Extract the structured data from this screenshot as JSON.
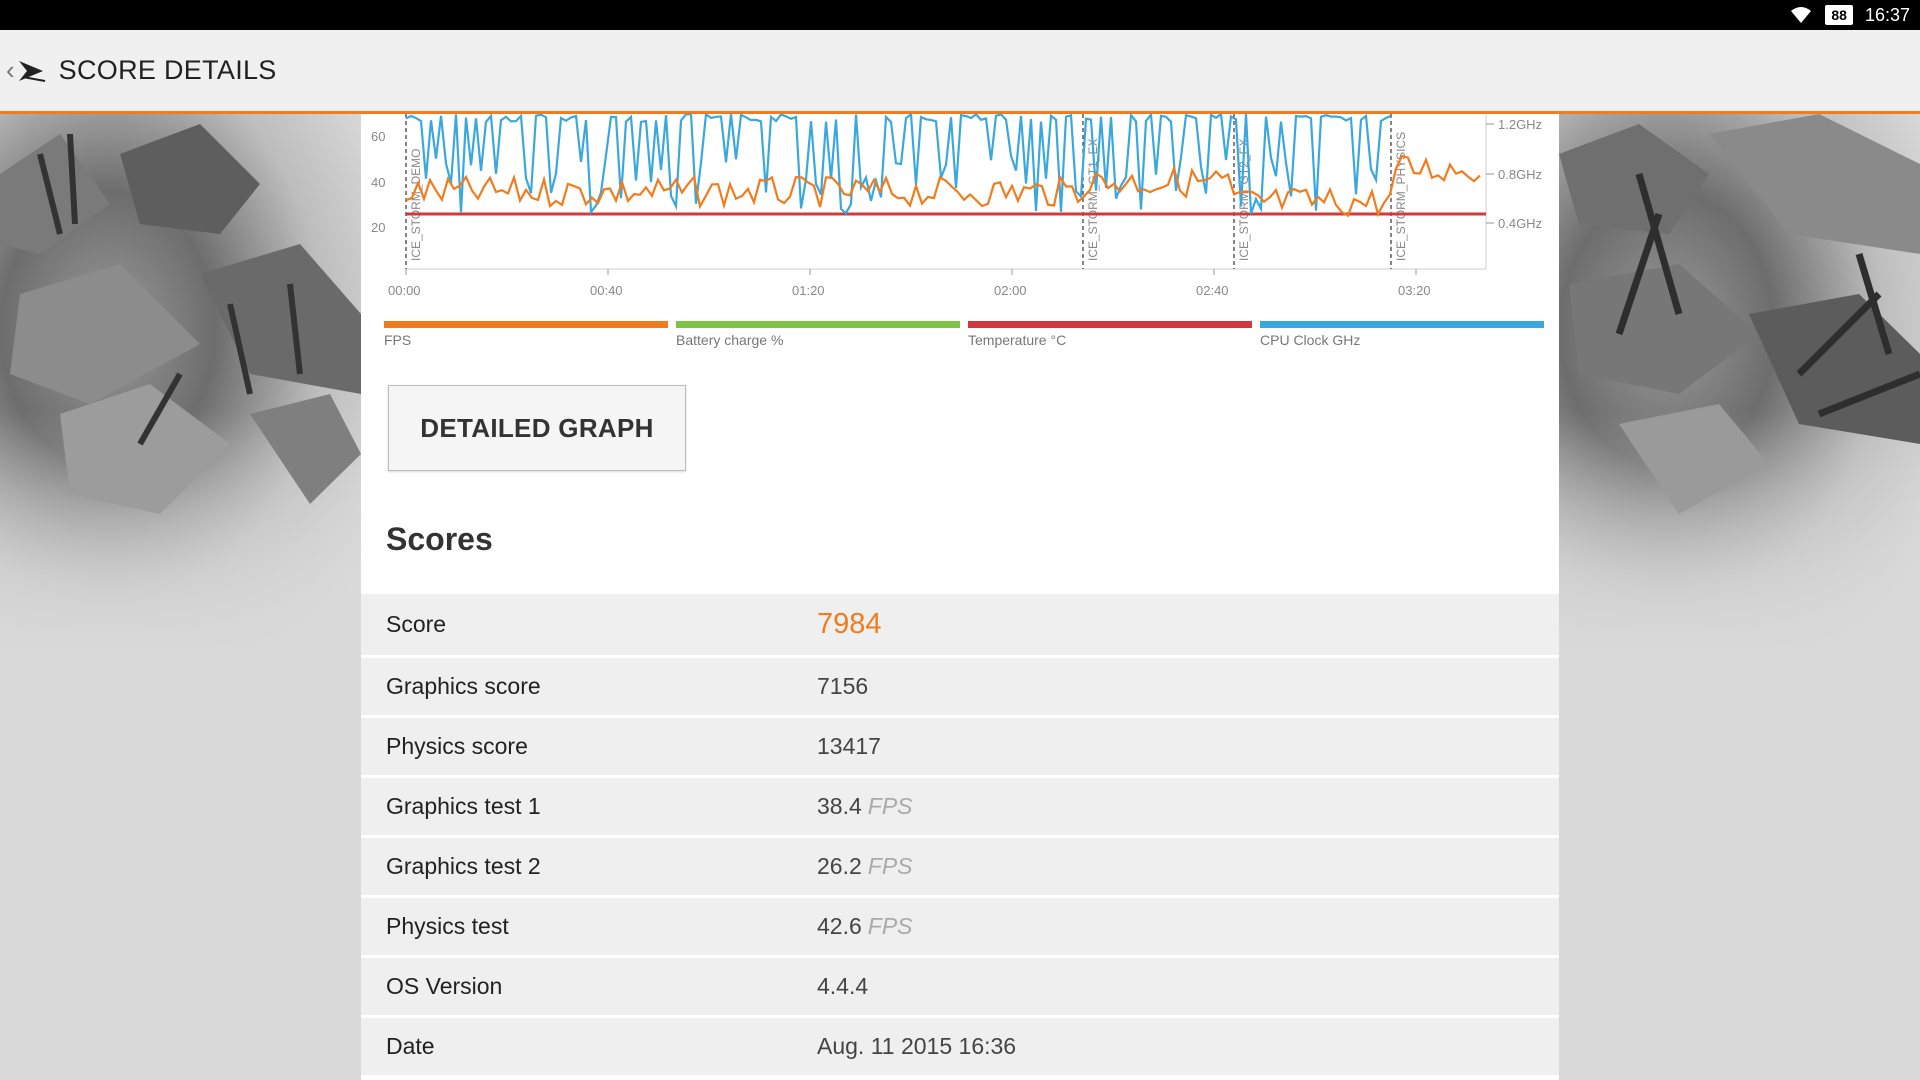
{
  "status_bar": {
    "battery": "88",
    "time": "16:37"
  },
  "app_bar": {
    "title": "SCORE DETAILS",
    "back_icon": "chevron-left-icon",
    "logo_icon": "3dmark-logo-icon"
  },
  "chart_data": {
    "type": "line",
    "x_ticks": [
      "00:00",
      "00:40",
      "01:20",
      "02:00",
      "02:40",
      "03:20"
    ],
    "y_ticks_left": [
      "60",
      "40",
      "20"
    ],
    "y_ticks_right": [
      "1.2GHz",
      "0.8GHz",
      "0.4GHz"
    ],
    "markers": [
      "ICE_STORM_DEMO",
      "ICE_STORM_GT1_EX",
      "ICE_STORM_GT2_EX",
      "ICE_STORM_PHYSICS"
    ],
    "legend": [
      {
        "name": "FPS",
        "color": "#f07c1e"
      },
      {
        "name": "Battery charge %",
        "color": "#7dc242"
      },
      {
        "name": "Temperature °C",
        "color": "#d0393e"
      },
      {
        "name": "CPU Clock GHz",
        "color": "#3aa8dc"
      }
    ]
  },
  "detailed_graph_label": "DETAILED GRAPH",
  "scores_title": "Scores",
  "rows": [
    {
      "label": "Score",
      "value": "7984",
      "unit": ""
    },
    {
      "label": "Graphics score",
      "value": "7156",
      "unit": ""
    },
    {
      "label": "Physics score",
      "value": "13417",
      "unit": ""
    },
    {
      "label": "Graphics test 1",
      "value": "38.4",
      "unit": "FPS"
    },
    {
      "label": "Graphics test 2",
      "value": "26.2",
      "unit": "FPS"
    },
    {
      "label": "Physics test",
      "value": "42.6",
      "unit": "FPS"
    },
    {
      "label": "OS Version",
      "value": "4.4.4",
      "unit": ""
    },
    {
      "label": "Date",
      "value": "Aug. 11 2015 16:36",
      "unit": ""
    }
  ]
}
